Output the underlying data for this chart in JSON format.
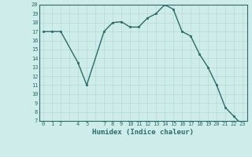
{
  "x": [
    0,
    1,
    2,
    4,
    5,
    7,
    8,
    9,
    10,
    11,
    12,
    13,
    14,
    15,
    16,
    17,
    18,
    19,
    20,
    21,
    22,
    23
  ],
  "y": [
    17.0,
    17.0,
    17.0,
    13.5,
    11.0,
    17.0,
    18.0,
    18.1,
    17.5,
    17.5,
    18.5,
    19.0,
    20.0,
    19.5,
    17.0,
    16.5,
    14.5,
    13.0,
    11.0,
    8.5,
    7.5,
    6.5
  ],
  "line_color": "#2d6b6b",
  "marker_color": "#2d6b6b",
  "bg_color": "#ceecea",
  "grid_major_color": "#b8d8d4",
  "grid_minor_color": "#d8eeec",
  "axis_color": "#2d6b6b",
  "xlabel": "Humidex (Indice chaleur)",
  "ylim": [
    7,
    20
  ],
  "xlim": [
    -0.5,
    23.5
  ],
  "yticks": [
    7,
    8,
    9,
    10,
    11,
    12,
    13,
    14,
    15,
    16,
    17,
    18,
    19,
    20
  ],
  "xticks": [
    0,
    1,
    2,
    3,
    4,
    5,
    6,
    7,
    8,
    9,
    10,
    11,
    12,
    13,
    14,
    15,
    16,
    17,
    18,
    19,
    20,
    21,
    22,
    23
  ],
  "xtick_labels": [
    "0",
    "1",
    "2",
    "",
    "4",
    "5",
    "",
    "7",
    "8",
    "9",
    "10",
    "11",
    "12",
    "13",
    "14",
    "15",
    "16",
    "17",
    "18",
    "19",
    "20",
    "21",
    "22",
    "23"
  ]
}
